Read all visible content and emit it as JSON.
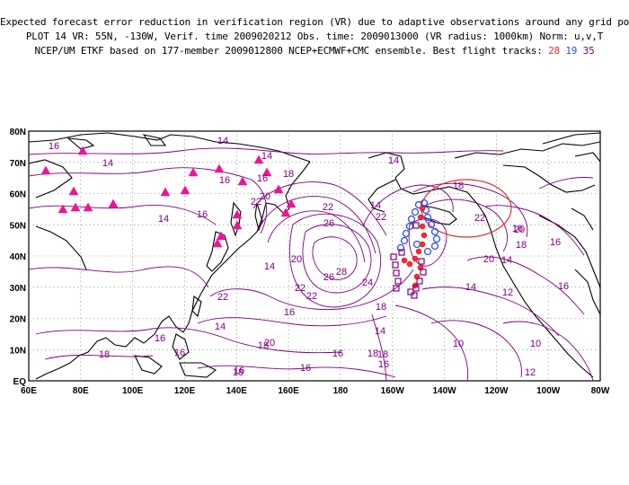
{
  "header": {
    "line1": "Expected forecast error reduction in verification region (VR) due to adaptive observations around any grid point.",
    "line2": "PLOT 14 VR: 55N, -130W, Verif. time 2009020212 Obs. time: 2009013000 (VR radius: 1000km) Norm: u,v,T",
    "line3_prefix": "NCEP/UM ETKF based on 177-member 2009012800 NCEP+ECMWF+CMC ensemble. Best flight tracks:",
    "track_red": "28",
    "track_blue": "19",
    "track_purple": "35"
  },
  "axes": {
    "x_labels": [
      "60E",
      "80E",
      "100E",
      "120E",
      "140E",
      "160E",
      "180",
      "160W",
      "140W",
      "120W",
      "100W",
      "80W"
    ],
    "y_labels": [
      "EQ",
      "10N",
      "20N",
      "30N",
      "40N",
      "50N",
      "60N",
      "70N",
      "80N"
    ]
  },
  "contour_labels": [
    "16",
    "14",
    "14",
    "16",
    "14",
    "16",
    "14",
    "16",
    "18",
    "20",
    "22",
    "22",
    "26",
    "22",
    "20",
    "16",
    "14",
    "16",
    "18",
    "20",
    "22",
    "28",
    "26",
    "24",
    "22",
    "22",
    "18",
    "16",
    "14",
    "14",
    "18",
    "16",
    "14",
    "18",
    "16",
    "18",
    "16",
    "18",
    "22",
    "16",
    "20",
    "18",
    "14",
    "16",
    "20",
    "16",
    "12",
    "14",
    "10",
    "10",
    "12",
    "14",
    "16",
    "18"
  ],
  "colors": {
    "contour": "#800080",
    "triangles": "#ee1493",
    "track_red": "#ff2a2a",
    "track_blue": "#2a4cff",
    "track_purple": "#800080",
    "verification_circle": "#e03030"
  }
}
